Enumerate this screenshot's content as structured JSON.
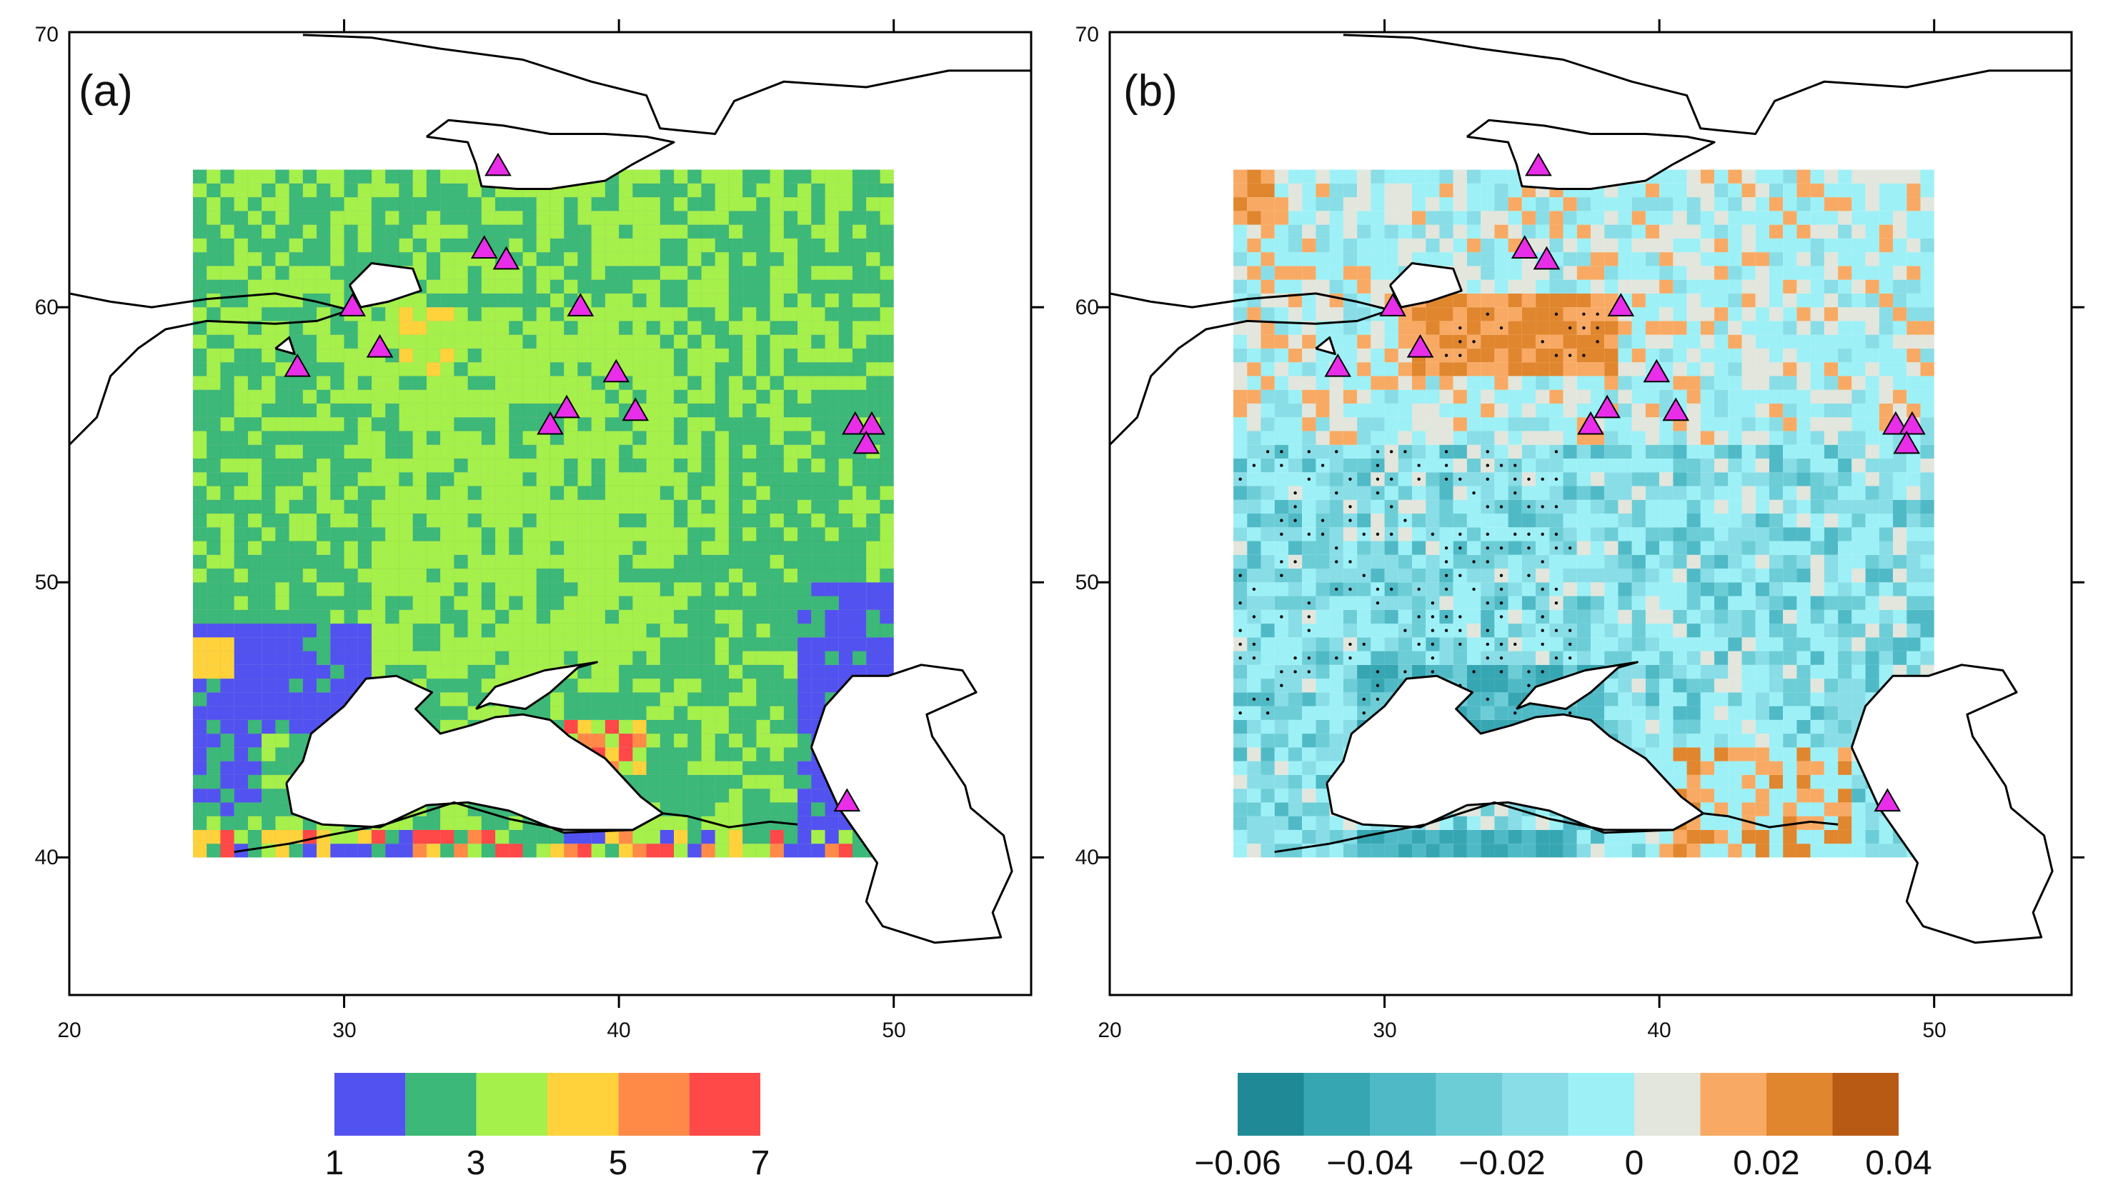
{
  "panels": [
    {
      "id": "a",
      "label": "(a)",
      "x_ticks": [
        "20",
        "30",
        "40",
        "50"
      ],
      "y_ticks": [
        "40",
        "50",
        "60",
        "70"
      ],
      "x_range": [
        20,
        55
      ],
      "y_range": [
        35,
        70
      ],
      "colorbar": {
        "colors": [
          "#5252f0",
          "#3cb878",
          "#a5f04a",
          "#ffd23c",
          "#ff8a48",
          "#ff4848"
        ],
        "labels": [
          "1",
          "3",
          "5",
          "7"
        ]
      }
    },
    {
      "id": "b",
      "label": "(b)",
      "x_ticks": [
        "20",
        "30",
        "40",
        "50"
      ],
      "y_ticks": [
        "40",
        "50",
        "60",
        "70"
      ],
      "x_range": [
        20,
        55
      ],
      "y_range": [
        35,
        70
      ],
      "colorbar": {
        "colors": [
          "#1f8a96",
          "#36a6b2",
          "#4fbac6",
          "#6ccdd6",
          "#88dde6",
          "#9df0f6",
          "#e2e6dc",
          "#f8aa64",
          "#e0862e",
          "#b85a14"
        ],
        "labels": [
          "−0.06",
          "−0.04",
          "−0.02",
          "0",
          "0.02",
          "0.04"
        ]
      }
    }
  ],
  "stations": [
    {
      "lon": 35.6,
      "lat": 65.1
    },
    {
      "lon": 35.1,
      "lat": 62.1
    },
    {
      "lon": 35.9,
      "lat": 61.7
    },
    {
      "lon": 30.3,
      "lat": 60.0
    },
    {
      "lon": 38.6,
      "lat": 60.0
    },
    {
      "lon": 31.3,
      "lat": 58.5
    },
    {
      "lon": 28.3,
      "lat": 57.8
    },
    {
      "lon": 39.9,
      "lat": 57.6
    },
    {
      "lon": 38.1,
      "lat": 56.3
    },
    {
      "lon": 37.5,
      "lat": 55.7
    },
    {
      "lon": 40.6,
      "lat": 56.2
    },
    {
      "lon": 48.6,
      "lat": 55.7
    },
    {
      "lon": 49.2,
      "lat": 55.7
    },
    {
      "lon": 49.0,
      "lat": 55.0
    },
    {
      "lon": 48.3,
      "lat": 42.0
    }
  ],
  "colors": {
    "marker": "#e82ee8",
    "coast": "#000000",
    "frame": "#000000"
  }
}
